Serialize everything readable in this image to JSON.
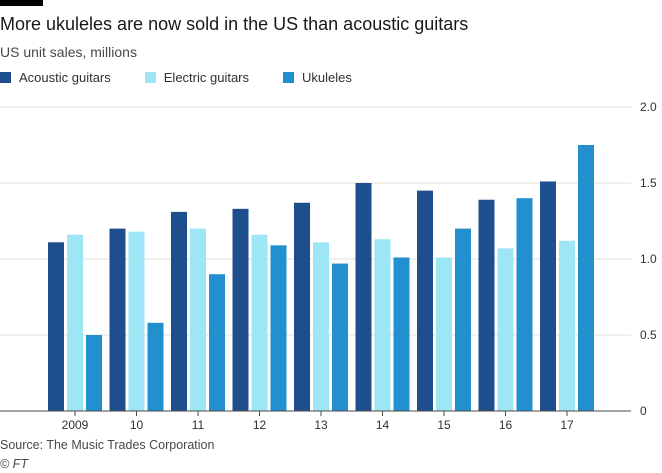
{
  "title": "More ukuleles are now sold in the US than acoustic guitars",
  "subtitle": "US unit sales, millions",
  "source": "Source: The Music Trades Corporation",
  "credit": "© FT",
  "colors": {
    "acoustic": "#1e4f8c",
    "electric": "#9ee6f5",
    "ukuleles": "#228fcf",
    "grid": "#e6e0da",
    "axis": "#4d4845",
    "text": "#33302e"
  },
  "chart_data": {
    "type": "bar",
    "title": "More ukuleles are now sold in the US than acoustic guitars",
    "subtitle": "US unit sales, millions",
    "categories": [
      "2009",
      "10",
      "11",
      "12",
      "13",
      "14",
      "15",
      "16",
      "17"
    ],
    "series": [
      {
        "name": "Acoustic guitars",
        "color": "#1e4f8c",
        "values": [
          1.11,
          1.2,
          1.31,
          1.33,
          1.37,
          1.5,
          1.45,
          1.39,
          1.51
        ]
      },
      {
        "name": "Electric guitars",
        "color": "#9ee6f5",
        "values": [
          1.16,
          1.18,
          1.2,
          1.16,
          1.11,
          1.13,
          1.01,
          1.07,
          1.12
        ]
      },
      {
        "name": "Ukuleles",
        "color": "#228fcf",
        "values": [
          0.5,
          0.58,
          0.9,
          1.09,
          0.97,
          1.01,
          1.2,
          1.4,
          1.75
        ]
      }
    ],
    "ylim": [
      0,
      2.0
    ],
    "yticks": [
      "0",
      "0.5",
      "1.0",
      "1.5",
      "2.0"
    ],
    "ytick_values": [
      0,
      0.5,
      1.0,
      1.5,
      2.0
    ],
    "y_axis_side": "right",
    "grid": true,
    "legend_position": "top-left"
  }
}
